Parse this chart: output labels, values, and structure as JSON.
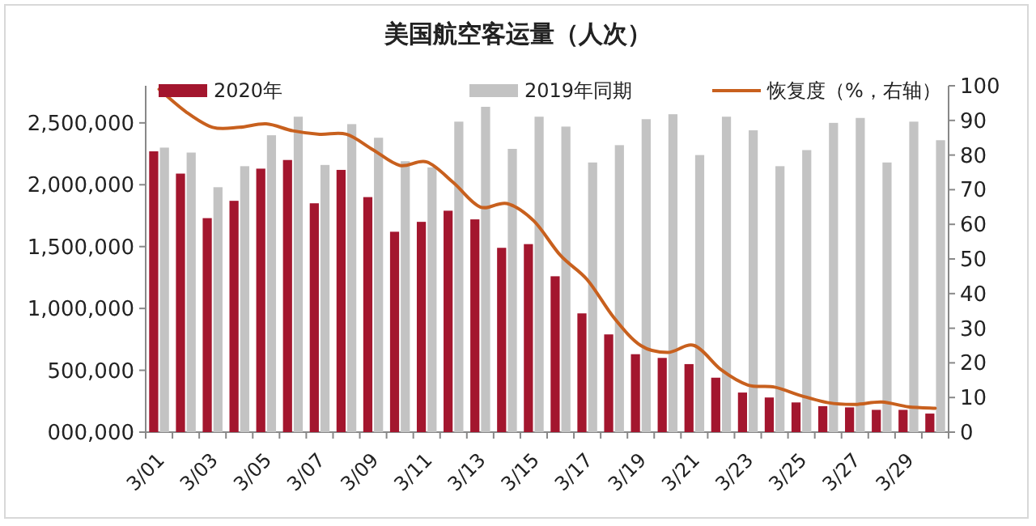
{
  "chart_data": {
    "type": "bar",
    "title": "美国航空客运量（人次）",
    "categories": [
      "3/01",
      null,
      "3/03",
      null,
      "3/05",
      null,
      "3/07",
      null,
      "3/09",
      null,
      "3/11",
      null,
      "3/13",
      null,
      "3/15",
      null,
      "3/17",
      null,
      "3/19",
      null,
      "3/21",
      null,
      "3/23",
      null,
      "3/25",
      null,
      "3/27",
      null,
      "3/29",
      null
    ],
    "series": [
      {
        "name": "2020年",
        "color": "#a3162e",
        "values": [
          2270000,
          2090000,
          1730000,
          1870000,
          2130000,
          2200000,
          1850000,
          2120000,
          1900000,
          1620000,
          1700000,
          1790000,
          1720000,
          1490000,
          1520000,
          1260000,
          960000,
          790000,
          630000,
          600000,
          550000,
          440000,
          320000,
          280000,
          240000,
          210000,
          200000,
          180000,
          180000,
          150000
        ]
      },
      {
        "name": "2019年同期",
        "color": "#c3c3c3",
        "values": [
          2300000,
          2260000,
          1980000,
          2150000,
          2400000,
          2550000,
          2160000,
          2490000,
          2380000,
          2190000,
          2140000,
          2510000,
          2630000,
          2290000,
          2550000,
          2470000,
          2180000,
          2320000,
          2530000,
          2570000,
          2240000,
          2550000,
          2440000,
          2150000,
          2280000,
          2500000,
          2540000,
          2180000,
          2510000,
          2360000
        ]
      },
      {
        "name": "恢复度（%，右轴）",
        "color": "#c8601e",
        "type": "line",
        "axis": "y2",
        "values": [
          99,
          92.5,
          88,
          88,
          89,
          87,
          86,
          86,
          81.5,
          77,
          78,
          72,
          65,
          66,
          61,
          51,
          44,
          33,
          25,
          23,
          25,
          18,
          13.6,
          13,
          10.5,
          8.5,
          8,
          8.7,
          7.3,
          6.9
        ]
      }
    ],
    "ylim": [
      0,
      2800000
    ],
    "yticks": [
      {
        "value": 0,
        "label": "000,000"
      },
      {
        "value": 500000,
        "label": "500,000"
      },
      {
        "value": 1000000,
        "label": "1,000,000"
      },
      {
        "value": 1500000,
        "label": "1,500,000"
      },
      {
        "value": 2000000,
        "label": "2,000,000"
      },
      {
        "value": 2500000,
        "label": "2,500,000"
      }
    ],
    "y2lim": [
      0,
      100
    ],
    "y2ticks": [
      0,
      10,
      20,
      30,
      40,
      50,
      60,
      70,
      80,
      90,
      100
    ],
    "legend": "top"
  }
}
